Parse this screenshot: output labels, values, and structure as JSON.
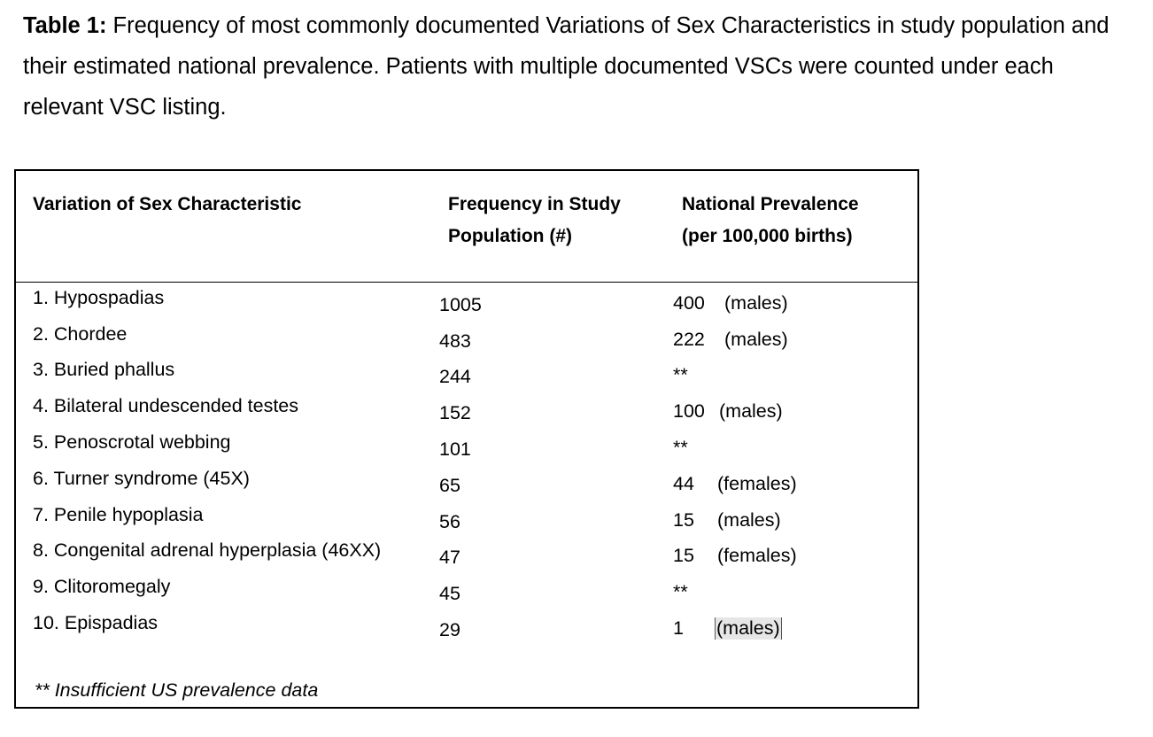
{
  "caption": {
    "label": "Table 1:",
    "text": " Frequency of most commonly documented Variations of Sex Characteristics in study population and their estimated national prevalence. Patients with multiple documented VSCs were counted under each relevant VSC listing."
  },
  "table": {
    "headers": {
      "col1": "Variation of Sex Characteristic",
      "col2_line1": "Frequency in Study",
      "col2_line2": "Population (#)",
      "col3_line1": "National Prevalence",
      "col3_line2": "(per 100,000 births)"
    },
    "rows": [
      {
        "name": "1. Hypospadias",
        "frequency": "1005",
        "prevalence": "400",
        "note": "(males)"
      },
      {
        "name": "2. Chordee",
        "frequency": "483",
        "prevalence": "222",
        "note": "(males)"
      },
      {
        "name": "3. Buried phallus",
        "frequency": "244",
        "prevalence": "**",
        "note": ""
      },
      {
        "name": "4. Bilateral undescended testes",
        "frequency": "152",
        "prevalence": "100",
        "note": "(males)"
      },
      {
        "name": "5. Penoscrotal webbing",
        "frequency": "101",
        "prevalence": "**",
        "note": ""
      },
      {
        "name": "6. Turner syndrome (45X)",
        "frequency": "65",
        "prevalence": "44",
        "note": "(females)"
      },
      {
        "name": "7. Penile hypoplasia",
        "frequency": "56",
        "prevalence": "15",
        "note": "(males)"
      },
      {
        "name": "8. Congenital adrenal hyperplasia (46XX)",
        "frequency": "47",
        "prevalence": "15",
        "note": "(females)"
      },
      {
        "name": "9. Clitoromegaly",
        "frequency": "45",
        "prevalence": "**",
        "note": ""
      },
      {
        "name": "10. Epispadias",
        "frequency": "29",
        "prevalence": "1",
        "note": "(males)"
      }
    ],
    "footnote": "** Insufficient US prevalence data"
  }
}
